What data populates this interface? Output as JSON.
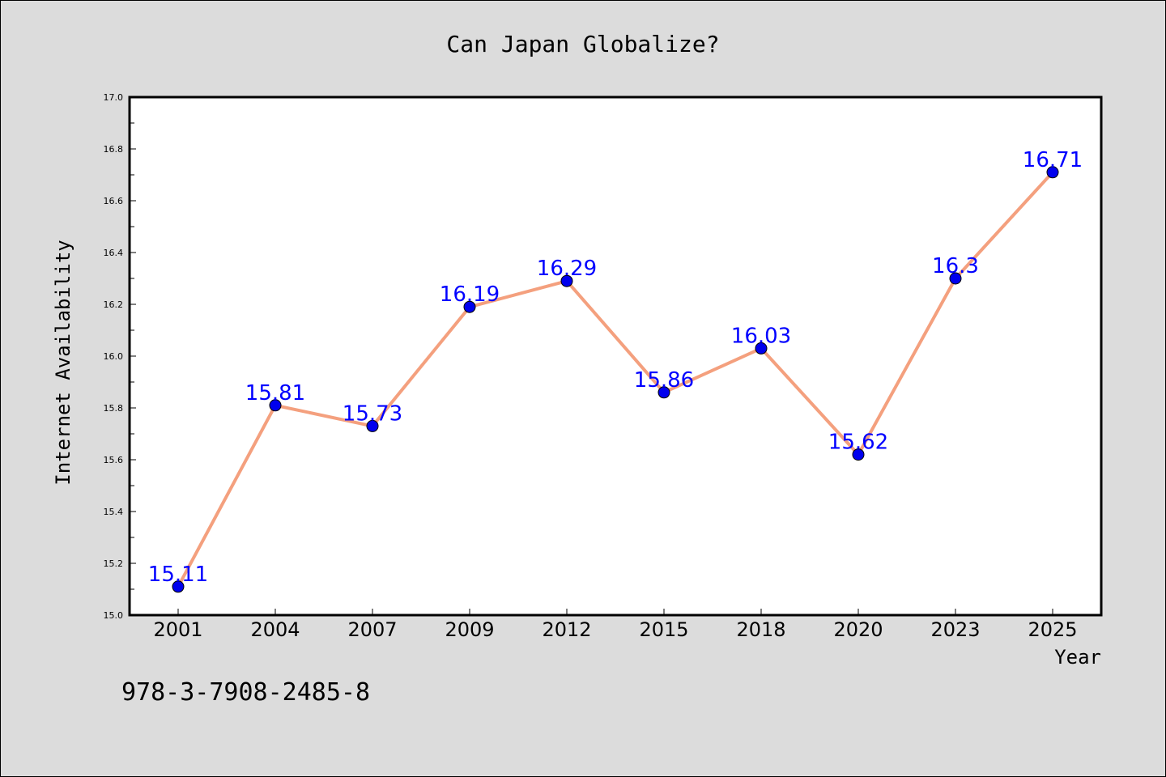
{
  "chart_data": {
    "type": "line",
    "title": "Can Japan Globalize?",
    "xlabel": "Year",
    "ylabel": "Internet Availability",
    "categories": [
      "2001",
      "2004",
      "2007",
      "2009",
      "2012",
      "2015",
      "2018",
      "2020",
      "2023",
      "2025"
    ],
    "values": [
      15.11,
      15.81,
      15.73,
      16.19,
      16.29,
      15.86,
      16.03,
      15.62,
      16.3,
      16.71
    ],
    "data_labels": [
      "15.11",
      "15.81",
      "15.73",
      "16.19",
      "16.29",
      "15.86",
      "16.03",
      "15.62",
      "16.3",
      "16.71"
    ],
    "ylim": [
      15.0,
      17.0
    ],
    "yticks": [
      "15.0",
      "15.2",
      "15.4",
      "15.6",
      "15.8",
      "16.0",
      "16.2",
      "16.4",
      "16.6",
      "16.8",
      "17.0"
    ],
    "grid": false,
    "line_color": "#f4a07e",
    "marker_color": "#0000ee",
    "label_color": "#0000ff",
    "background_color": "#dcdcdc",
    "plot_background": "#ffffff"
  },
  "annotation": {
    "isbn": "978-3-7908-2485-8"
  }
}
